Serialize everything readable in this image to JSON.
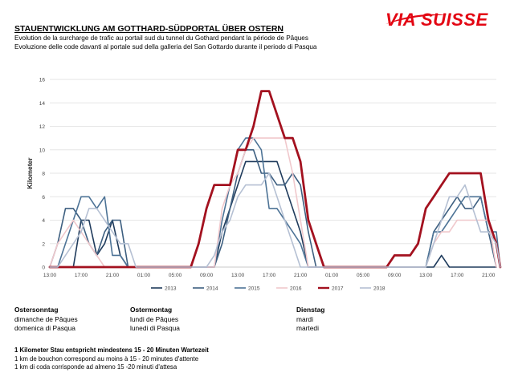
{
  "brand": {
    "logo_text": "VIASUISSE",
    "color": "#e30613"
  },
  "header": {
    "title": "STAUENTWICKLUNG AM GOTTHARD-SÜDPORTAL ÜBER OSTERN",
    "subtitle_fr": "Evolution de la surcharge de trafic au portail sud du tunnel du Gothard pendant la période de Pâques",
    "subtitle_it": "Evoluzione delle code davanti al portale sud della galleria del San Gottardo durante il periodo di Pasqua"
  },
  "chart_data": {
    "type": "line",
    "ylabel": "Kilometer",
    "ylim": [
      0,
      16
    ],
    "yticks": [
      0,
      2,
      4,
      6,
      8,
      10,
      12,
      14,
      16
    ],
    "x_hours": [
      13,
      14,
      15,
      16,
      17,
      18,
      19,
      20,
      21,
      22,
      23,
      24,
      25,
      26,
      27,
      28,
      29,
      30,
      31,
      32,
      33,
      34,
      35,
      36,
      37,
      38,
      39,
      40,
      41,
      42,
      43,
      44,
      45,
      46,
      47,
      48,
      49,
      50,
      51,
      52,
      53,
      54,
      55,
      56,
      57,
      58,
      59,
      60,
      61,
      62,
      63,
      64,
      65,
      66,
      67,
      68,
      69,
      70
    ],
    "xlim": [
      13,
      70
    ],
    "xtick_positions": [
      13,
      17,
      21,
      25,
      29,
      33,
      37,
      41,
      45,
      49,
      53,
      57,
      61,
      65,
      69
    ],
    "xtick_labels": [
      "13:00",
      "17:00",
      "21:00",
      "01:00",
      "05:00",
      "09:00",
      "13:00",
      "17:00",
      "21:00",
      "01:00",
      "05:00",
      "09:00",
      "13:00",
      "17:00",
      "21:00"
    ],
    "grid": true,
    "legend_position": "bottom",
    "series": [
      {
        "name": "2013",
        "color": "#1f3b5c",
        "width": 1.6,
        "points": [
          [
            13,
            0
          ],
          [
            14,
            0
          ],
          [
            15,
            0
          ],
          [
            16,
            0
          ],
          [
            17,
            4
          ],
          [
            18,
            4
          ],
          [
            19,
            1
          ],
          [
            20,
            2
          ],
          [
            21,
            4
          ],
          [
            22,
            1
          ],
          [
            23,
            0
          ],
          [
            34,
            0
          ],
          [
            35,
            3
          ],
          [
            36,
            5
          ],
          [
            37,
            7
          ],
          [
            38,
            9
          ],
          [
            39,
            9
          ],
          [
            40,
            9
          ],
          [
            41,
            9
          ],
          [
            42,
            9
          ],
          [
            43,
            7
          ],
          [
            44,
            5
          ],
          [
            45,
            3
          ],
          [
            46,
            0
          ],
          [
            47,
            0
          ],
          [
            61,
            0
          ],
          [
            62,
            0
          ],
          [
            63,
            1
          ],
          [
            64,
            0
          ],
          [
            65,
            0
          ],
          [
            66,
            0
          ],
          [
            67,
            0
          ],
          [
            68,
            0
          ],
          [
            69,
            0
          ],
          [
            70,
            0
          ]
        ]
      },
      {
        "name": "2014",
        "color": "#3d5f80",
        "width": 1.6,
        "points": [
          [
            13,
            0
          ],
          [
            14,
            2
          ],
          [
            15,
            5
          ],
          [
            16,
            5
          ],
          [
            17,
            4
          ],
          [
            18,
            2
          ],
          [
            19,
            1
          ],
          [
            20,
            3
          ],
          [
            21,
            4
          ],
          [
            22,
            4
          ],
          [
            23,
            0
          ],
          [
            34,
            0
          ],
          [
            35,
            2
          ],
          [
            36,
            5
          ],
          [
            37,
            8
          ],
          [
            38,
            10
          ],
          [
            39,
            10
          ],
          [
            40,
            8
          ],
          [
            41,
            8
          ],
          [
            42,
            7
          ],
          [
            43,
            7
          ],
          [
            44,
            8
          ],
          [
            45,
            7
          ],
          [
            46,
            3
          ],
          [
            47,
            0
          ],
          [
            61,
            0
          ],
          [
            62,
            3
          ],
          [
            63,
            4
          ],
          [
            64,
            5
          ],
          [
            65,
            6
          ],
          [
            66,
            5
          ],
          [
            67,
            5
          ],
          [
            68,
            6
          ],
          [
            69,
            3
          ],
          [
            70,
            0
          ]
        ]
      },
      {
        "name": "2015",
        "color": "#4d7396",
        "width": 1.6,
        "points": [
          [
            13,
            0
          ],
          [
            14,
            0
          ],
          [
            15,
            2
          ],
          [
            16,
            4
          ],
          [
            17,
            6
          ],
          [
            18,
            6
          ],
          [
            19,
            5
          ],
          [
            20,
            6
          ],
          [
            21,
            1
          ],
          [
            22,
            1
          ],
          [
            23,
            0
          ],
          [
            34,
            0
          ],
          [
            35,
            4
          ],
          [
            36,
            7
          ],
          [
            37,
            10
          ],
          [
            38,
            11
          ],
          [
            39,
            11
          ],
          [
            40,
            10
          ],
          [
            41,
            5
          ],
          [
            42,
            5
          ],
          [
            43,
            4
          ],
          [
            44,
            3
          ],
          [
            45,
            2
          ],
          [
            46,
            0
          ],
          [
            47,
            0
          ],
          [
            61,
            0
          ],
          [
            62,
            3
          ],
          [
            63,
            3
          ],
          [
            64,
            4
          ],
          [
            65,
            5
          ],
          [
            66,
            6
          ],
          [
            67,
            6
          ],
          [
            68,
            6
          ],
          [
            69,
            3
          ],
          [
            70,
            3
          ],
          [
            70.5,
            0
          ]
        ]
      },
      {
        "name": "2016",
        "color": "#f0c8cc",
        "width": 1.6,
        "points": [
          [
            13,
            0
          ],
          [
            14,
            2
          ],
          [
            15,
            3
          ],
          [
            16,
            4
          ],
          [
            17,
            3
          ],
          [
            18,
            2
          ],
          [
            19,
            1
          ],
          [
            20,
            0
          ],
          [
            21,
            0
          ],
          [
            22,
            0
          ],
          [
            23,
            0
          ],
          [
            34,
            0
          ],
          [
            35,
            5
          ],
          [
            36,
            7
          ],
          [
            37,
            8
          ],
          [
            38,
            10
          ],
          [
            39,
            11
          ],
          [
            40,
            11
          ],
          [
            41,
            11
          ],
          [
            42,
            11
          ],
          [
            43,
            11
          ],
          [
            44,
            8
          ],
          [
            45,
            4
          ],
          [
            46,
            0
          ],
          [
            47,
            0
          ],
          [
            61,
            0
          ],
          [
            62,
            2
          ],
          [
            63,
            3
          ],
          [
            64,
            3
          ],
          [
            65,
            4
          ],
          [
            66,
            4
          ],
          [
            67,
            4
          ],
          [
            68,
            4
          ],
          [
            69,
            4
          ],
          [
            70,
            0
          ]
        ]
      },
      {
        "name": "2017",
        "color": "#a3111f",
        "width": 2.8,
        "points": [
          [
            13,
            0
          ],
          [
            14,
            0
          ],
          [
            15,
            0
          ],
          [
            16,
            0
          ],
          [
            17,
            0
          ],
          [
            18,
            0
          ],
          [
            19,
            0
          ],
          [
            20,
            0
          ],
          [
            21,
            0
          ],
          [
            22,
            0
          ],
          [
            23,
            0
          ],
          [
            24,
            0
          ],
          [
            25,
            0
          ],
          [
            26,
            0
          ],
          [
            27,
            0
          ],
          [
            28,
            0
          ],
          [
            29,
            0
          ],
          [
            30,
            0
          ],
          [
            31,
            0
          ],
          [
            32,
            2
          ],
          [
            33,
            5
          ],
          [
            34,
            7
          ],
          [
            35,
            7
          ],
          [
            36,
            7
          ],
          [
            37,
            10
          ],
          [
            38,
            10
          ],
          [
            39,
            12
          ],
          [
            40,
            15
          ],
          [
            41,
            15
          ],
          [
            42,
            13
          ],
          [
            43,
            11
          ],
          [
            44,
            11
          ],
          [
            45,
            9
          ],
          [
            46,
            4
          ],
          [
            47,
            2
          ],
          [
            48,
            0
          ],
          [
            49,
            0
          ],
          [
            50,
            0
          ],
          [
            51,
            0
          ],
          [
            52,
            0
          ],
          [
            53,
            0
          ],
          [
            54,
            0
          ],
          [
            55,
            0
          ],
          [
            56,
            0
          ],
          [
            57,
            1
          ],
          [
            58,
            1
          ],
          [
            59,
            1
          ],
          [
            60,
            2
          ],
          [
            61,
            5
          ],
          [
            62,
            6
          ],
          [
            63,
            7
          ],
          [
            64,
            8
          ],
          [
            65,
            8
          ],
          [
            66,
            8
          ],
          [
            67,
            8
          ],
          [
            68,
            8
          ],
          [
            69,
            4
          ],
          [
            70,
            2
          ],
          [
            70.5,
            0
          ]
        ]
      },
      {
        "name": "2018",
        "color": "#b5c0d3",
        "width": 1.6,
        "points": [
          [
            13,
            0
          ],
          [
            14,
            0
          ],
          [
            15,
            1
          ],
          [
            16,
            2
          ],
          [
            17,
            3
          ],
          [
            18,
            5
          ],
          [
            19,
            5
          ],
          [
            20,
            4
          ],
          [
            21,
            3
          ],
          [
            22,
            2
          ],
          [
            23,
            2
          ],
          [
            24,
            0
          ],
          [
            25,
            0
          ],
          [
            26,
            0
          ],
          [
            27,
            0
          ],
          [
            28,
            0
          ],
          [
            29,
            0
          ],
          [
            30,
            0
          ],
          [
            31,
            0
          ],
          [
            32,
            0
          ],
          [
            33,
            0
          ],
          [
            34,
            1
          ],
          [
            35,
            3
          ],
          [
            36,
            4
          ],
          [
            37,
            6
          ],
          [
            38,
            7
          ],
          [
            39,
            7
          ],
          [
            40,
            7
          ],
          [
            41,
            8
          ],
          [
            42,
            6
          ],
          [
            43,
            4
          ],
          [
            44,
            2
          ],
          [
            45,
            0
          ],
          [
            46,
            0
          ],
          [
            47,
            0
          ],
          [
            48,
            0
          ],
          [
            49,
            0
          ],
          [
            50,
            0
          ],
          [
            51,
            0
          ],
          [
            52,
            0
          ],
          [
            53,
            0
          ],
          [
            54,
            0
          ],
          [
            55,
            0
          ],
          [
            56,
            0
          ],
          [
            57,
            0
          ],
          [
            58,
            0
          ],
          [
            59,
            0
          ],
          [
            60,
            0
          ],
          [
            61,
            0
          ],
          [
            62,
            2
          ],
          [
            63,
            4
          ],
          [
            64,
            6
          ],
          [
            65,
            6
          ],
          [
            66,
            7
          ],
          [
            67,
            5
          ],
          [
            68,
            3
          ],
          [
            69,
            3
          ],
          [
            70,
            2
          ],
          [
            70.5,
            0
          ]
        ]
      }
    ]
  },
  "day_labels": [
    {
      "de": "Ostersonntag",
      "fr": "dimanche de Pâques",
      "it": "domenica di Pasqua"
    },
    {
      "de": "Ostermontag",
      "fr": "lundi de Pâques",
      "it": "lunedi di Pasqua"
    },
    {
      "de": "Dienstag",
      "fr": "mardi",
      "it": "martedi"
    }
  ],
  "notes": {
    "de": "1 Kilometer Stau entspricht mindestens 15 - 20 Minuten Wartezeit",
    "fr": "1 km de bouchon correspond au moins à 15 - 20 minutes d'attente",
    "it": "1 km di coda corrisponde ad almeno 15 -20 minuti d'attesa"
  }
}
